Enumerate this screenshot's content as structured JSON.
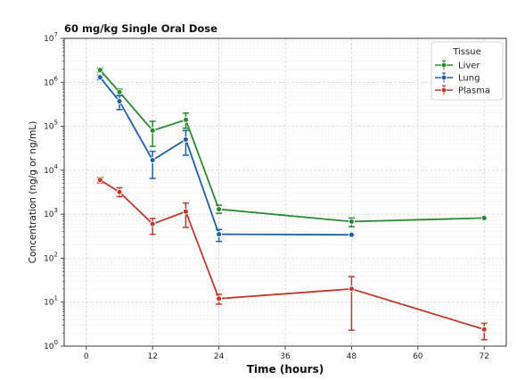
{
  "chart_data": {
    "type": "line",
    "title": "60 mg/kg Single Oral Dose",
    "xlabel": "Time (hours)",
    "ylabel": "Concentration (ng/g or ng/mL)",
    "xlim": [
      -4,
      76
    ],
    "ylim": [
      1,
      10000000
    ],
    "yscale": "log",
    "xticks": [
      0,
      12,
      24,
      36,
      48,
      60,
      72
    ],
    "yticks": [
      {
        "value": 1,
        "base": "10",
        "exp": "0"
      },
      {
        "value": 10,
        "base": "10",
        "exp": "1"
      },
      {
        "value": 100,
        "base": "10",
        "exp": "2"
      },
      {
        "value": 1000,
        "base": "10",
        "exp": "3"
      },
      {
        "value": 10000,
        "base": "10",
        "exp": "4"
      },
      {
        "value": 100000,
        "base": "10",
        "exp": "5"
      },
      {
        "value": 1000000,
        "base": "10",
        "exp": "6"
      },
      {
        "value": 10000000,
        "base": "10",
        "exp": "7"
      }
    ],
    "grid": true,
    "legend": {
      "title": "Tissue",
      "position": "top-right"
    },
    "series": [
      {
        "name": "Liver",
        "color": "#2a8a2f",
        "points": [
          {
            "x": 2.5,
            "y": 1900000,
            "lo": 1700000,
            "hi": 2100000
          },
          {
            "x": 6,
            "y": 600000,
            "lo": 500000,
            "hi": 700000
          },
          {
            "x": 12,
            "y": 80000,
            "lo": 35000,
            "hi": 130000
          },
          {
            "x": 18,
            "y": 140000,
            "lo": 90000,
            "hi": 200000
          },
          {
            "x": 24,
            "y": 1300,
            "lo": 1050,
            "hi": 1600
          },
          {
            "x": 48,
            "y": 680,
            "lo": 520,
            "hi": 820
          },
          {
            "x": 72,
            "y": 820,
            "lo": 800,
            "hi": 840
          }
        ]
      },
      {
        "name": "Lung",
        "color": "#1f5fa8",
        "points": [
          {
            "x": 2.5,
            "y": 1300000,
            "lo": 1150000,
            "hi": 1450000
          },
          {
            "x": 6,
            "y": 370000,
            "lo": 240000,
            "hi": 500000
          },
          {
            "x": 12,
            "y": 17000,
            "lo": 6500,
            "hi": 27000
          },
          {
            "x": 18,
            "y": 50000,
            "lo": 22000,
            "hi": 80000
          },
          {
            "x": 24,
            "y": 350,
            "lo": 240,
            "hi": 450
          },
          {
            "x": 48,
            "y": 340,
            "lo": 330,
            "hi": 350
          }
        ]
      },
      {
        "name": "Plasma",
        "color": "#c0392b",
        "points": [
          {
            "x": 2.5,
            "y": 6000,
            "lo": 5200,
            "hi": 6800
          },
          {
            "x": 6,
            "y": 3200,
            "lo": 2500,
            "hi": 4000
          },
          {
            "x": 12,
            "y": 600,
            "lo": 350,
            "hi": 800
          },
          {
            "x": 18,
            "y": 1150,
            "lo": 500,
            "hi": 1800
          },
          {
            "x": 24,
            "y": 12,
            "lo": 9,
            "hi": 15
          },
          {
            "x": 48,
            "y": 20,
            "lo": 2.3,
            "hi": 38
          },
          {
            "x": 72,
            "y": 2.4,
            "lo": 1.4,
            "hi": 3.3
          }
        ]
      }
    ]
  }
}
